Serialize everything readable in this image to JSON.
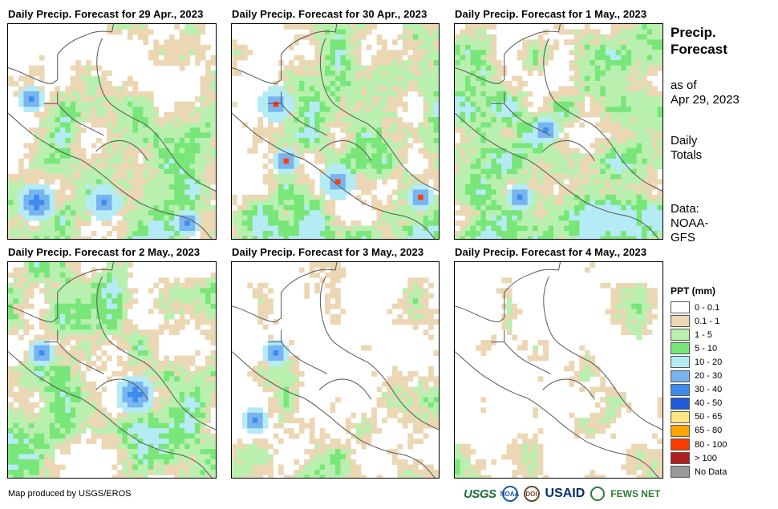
{
  "panels": [
    {
      "title": "Daily Precip. Forecast for 29 Apr., 2023",
      "date": "29 Apr"
    },
    {
      "title": "Daily Precip. Forecast for 30 Apr., 2023",
      "date": "30 Apr"
    },
    {
      "title": "Daily Precip. Forecast for 1 May., 2023",
      "date": "1 May"
    },
    {
      "title": "Daily Precip. Forecast for 2 May., 2023",
      "date": "2 May"
    },
    {
      "title": "Daily Precip. Forecast for 3 May., 2023",
      "date": "3 May"
    },
    {
      "title": "Daily Precip. Forecast for 4 May., 2023",
      "date": "4 May"
    }
  ],
  "sidebar": {
    "title_line1": "Precip.",
    "title_line2": "Forecast",
    "asof_line1": "as of",
    "asof_line2": "Apr 29, 2023",
    "daily_line1": "Daily",
    "daily_line2": "Totals",
    "data_line1": "Data:",
    "data_line2": "NOAA-",
    "data_line3": "GFS"
  },
  "legend": {
    "title": "PPT (mm)",
    "items": [
      {
        "label": "0 - 0.1",
        "color": "#ffffff"
      },
      {
        "label": "0.1 - 1",
        "color": "#ebd7b4"
      },
      {
        "label": "1 - 5",
        "color": "#b9f0b0"
      },
      {
        "label": "5 - 10",
        "color": "#78e678"
      },
      {
        "label": "10 - 20",
        "color": "#b4ebf5"
      },
      {
        "label": "20 - 30",
        "color": "#78b4f0"
      },
      {
        "label": "30 - 40",
        "color": "#3c8cf0"
      },
      {
        "label": "40 - 50",
        "color": "#1e5adc"
      },
      {
        "label": "50 - 65",
        "color": "#ffe682"
      },
      {
        "label": "65 - 80",
        "color": "#ffa500"
      },
      {
        "label": "80 - 100",
        "color": "#ff3c00"
      },
      {
        "label": "> 100",
        "color": "#b41e1e"
      },
      {
        "label": "No Data",
        "color": "#999999"
      }
    ]
  },
  "credit": "Map produced by USGS/EROS",
  "logos": {
    "usgs": "USGS",
    "noaa": "NOAA",
    "doi": "DOI",
    "usaid": "USAID",
    "fews": "FEWS NET"
  }
}
